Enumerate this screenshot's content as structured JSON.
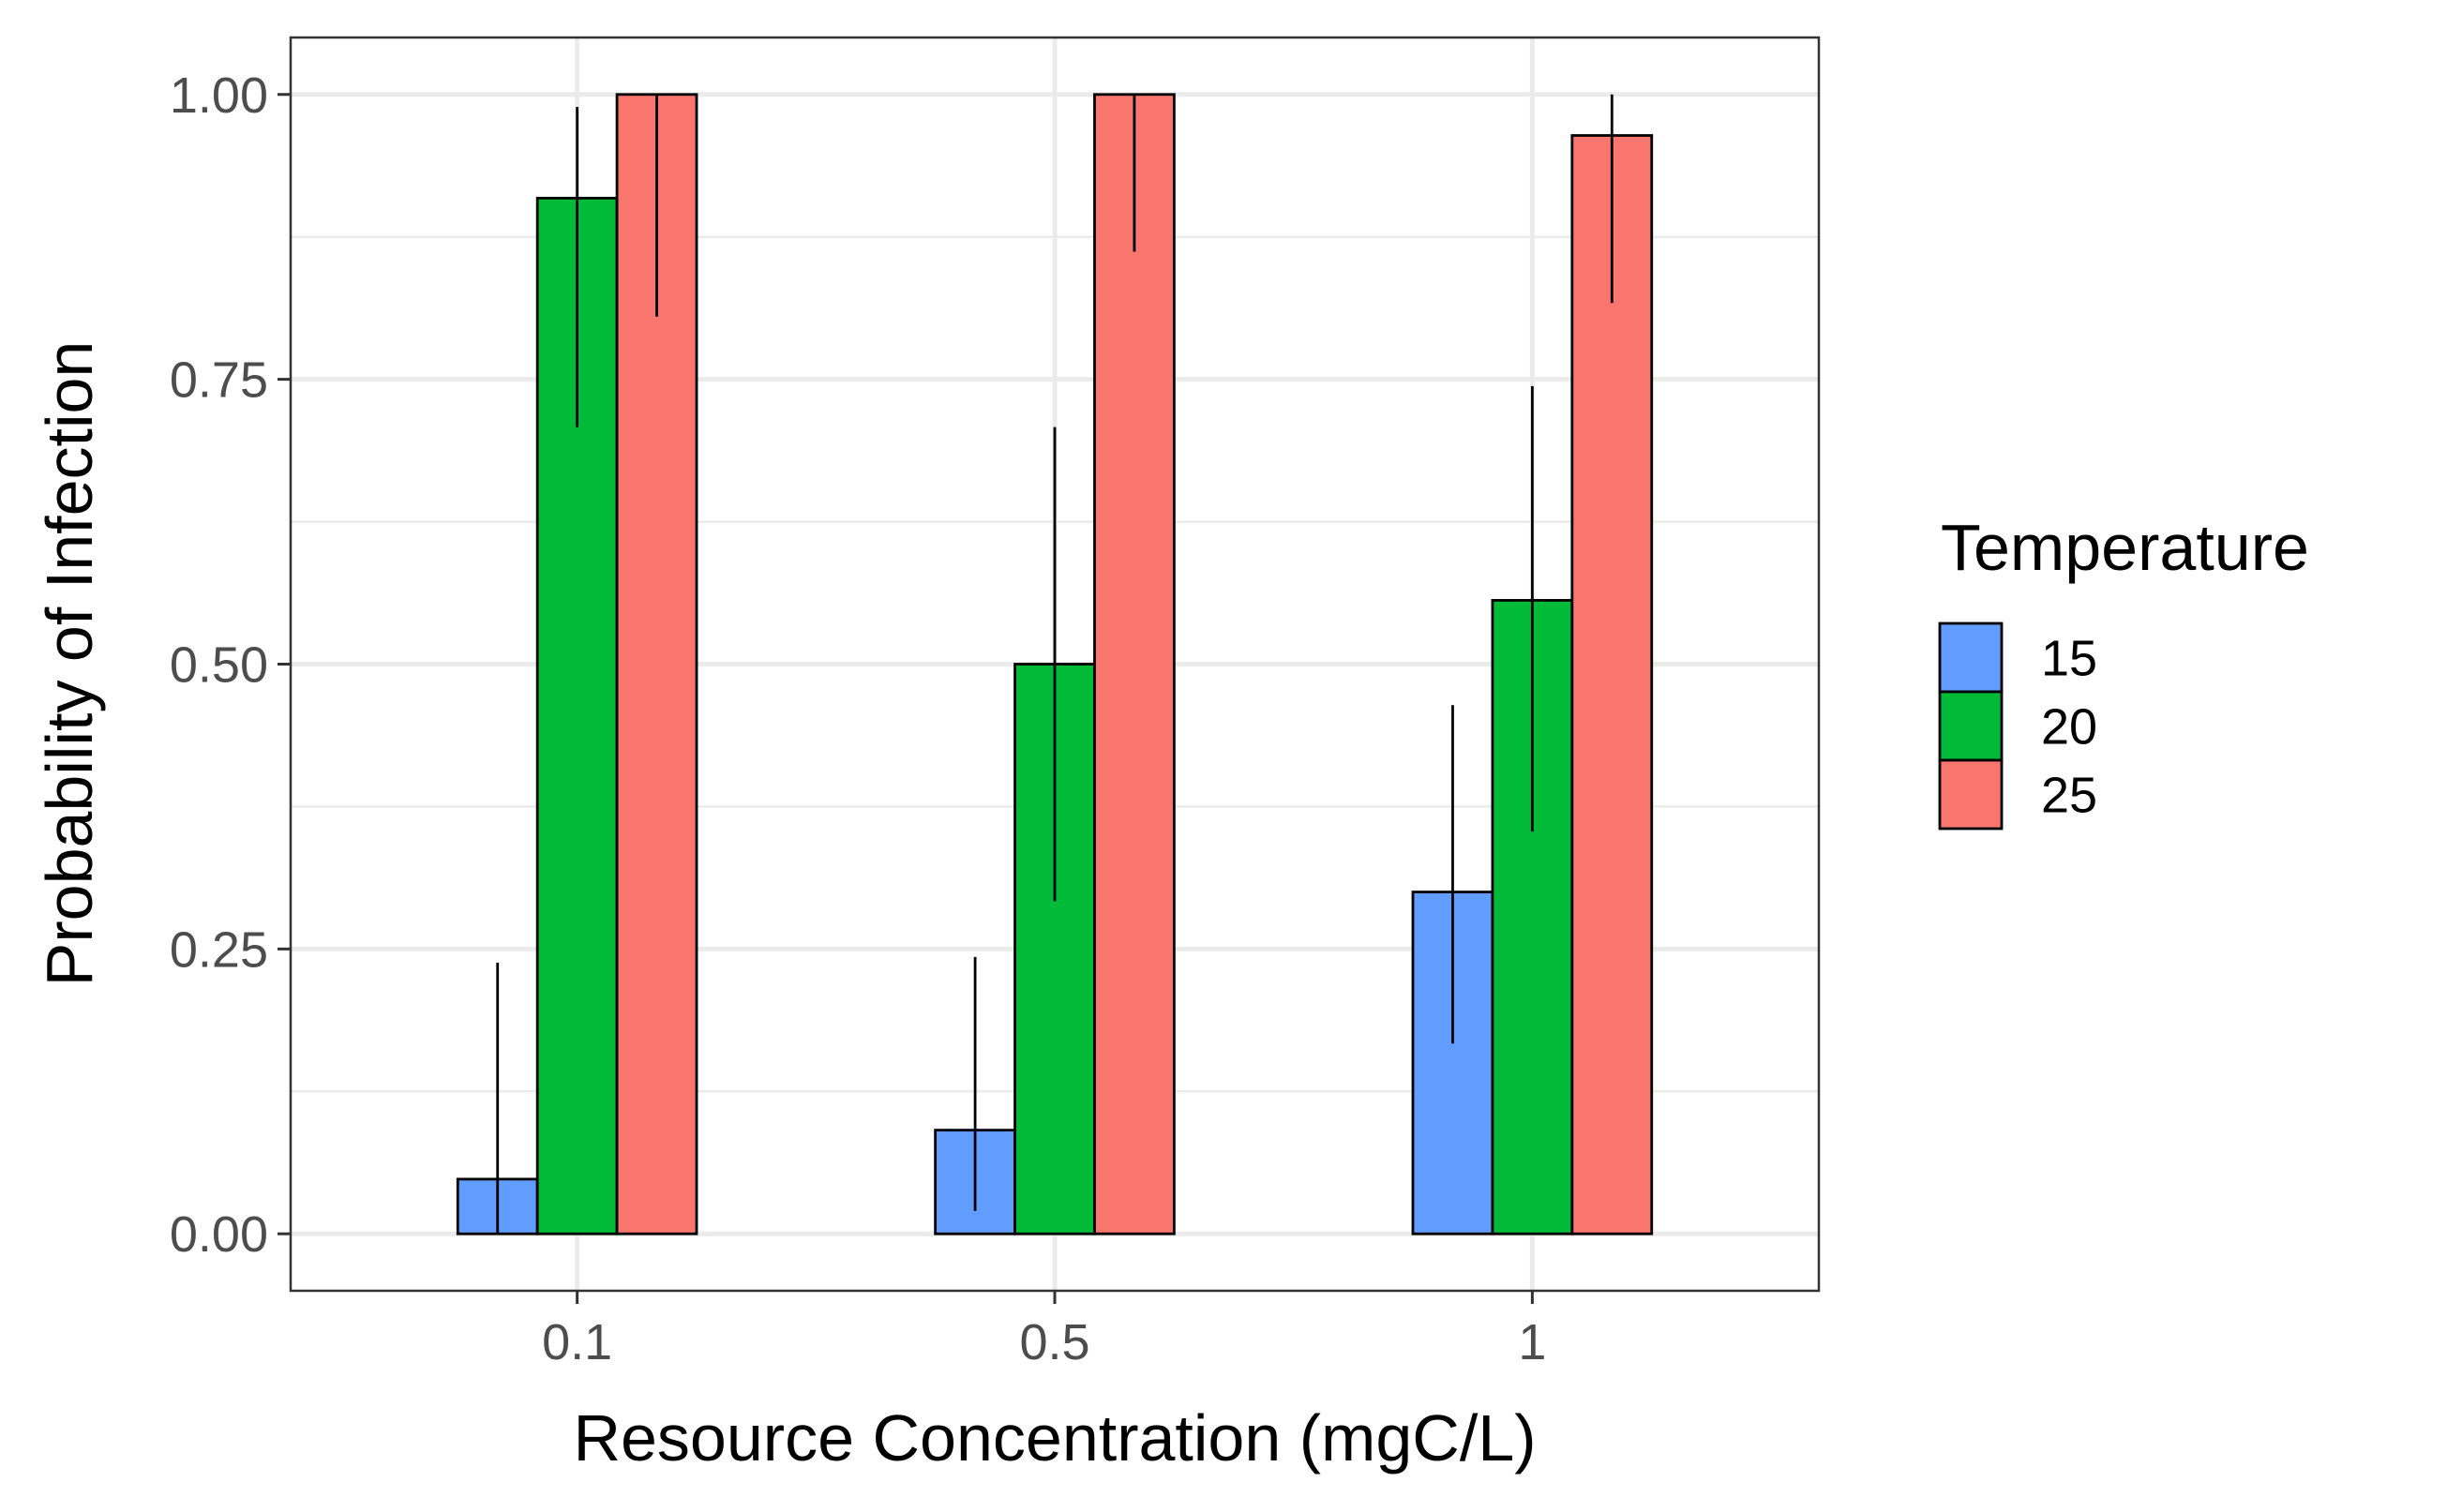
{
  "chart_data": {
    "type": "bar",
    "xlabel": "Resource Concentration (mgC/L)",
    "ylabel": "Probability of Infection",
    "categories": [
      "0.1",
      "0.5",
      "1"
    ],
    "ylim": [
      -0.05,
      1.05
    ],
    "y_ticks": [
      0,
      0.25,
      0.5,
      0.75,
      1
    ],
    "y_tick_labels": [
      "0.00",
      "0.25",
      "0.50",
      "0.75",
      "1.00"
    ],
    "grid": true,
    "legend": {
      "title": "Temperature",
      "position": "right"
    },
    "series": [
      {
        "name": "15",
        "color": "#619CFF",
        "values": [
          0.048,
          0.091,
          0.3
        ],
        "err_low": [
          0.0,
          0.02,
          0.167
        ],
        "err_high": [
          0.238,
          0.243,
          0.464
        ]
      },
      {
        "name": "20",
        "color": "#00BA38",
        "values": [
          0.909,
          0.5,
          0.556
        ],
        "err_low": [
          0.708,
          0.292,
          0.353
        ],
        "err_high": [
          0.989,
          0.708,
          0.744
        ]
      },
      {
        "name": "25",
        "color": "#F8766D",
        "values": [
          1.0,
          1.0,
          0.964
        ],
        "err_low": [
          0.805,
          0.862,
          0.817
        ],
        "err_high": [
          1.0,
          1.0,
          1.0
        ]
      }
    ]
  }
}
